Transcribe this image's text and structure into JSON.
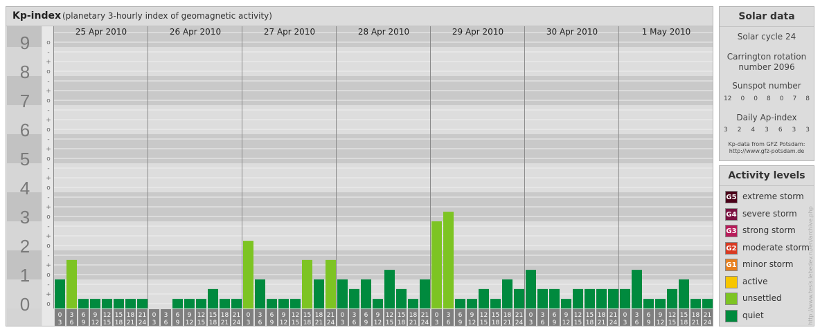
{
  "header": {
    "title": "Kp-index",
    "subtitle": "(planetary 3-hourly index of geomagnetic activity)"
  },
  "chart_data": {
    "type": "bar",
    "y_axis": {
      "labels": [
        "0",
        "1",
        "2",
        "3",
        "4",
        "5",
        "6",
        "7",
        "8",
        "9"
      ],
      "min": 0,
      "max": 9,
      "sublabels": [
        "-",
        "o",
        "+"
      ]
    },
    "days": [
      "25 Apr 2010",
      "26 Apr 2010",
      "27 Apr 2010",
      "28 Apr 2010",
      "29 Apr 2010",
      "30 Apr 2010",
      "1 May 2010"
    ],
    "interval_top": [
      "0",
      "3",
      "6",
      "9",
      "12",
      "15",
      "18",
      "21"
    ],
    "interval_bottom": [
      "3",
      "6",
      "9",
      "12",
      "15",
      "18",
      "21",
      "24"
    ],
    "values": [
      [
        1,
        1.67,
        0.33,
        0.33,
        0.33,
        0.33,
        0.33,
        0.33
      ],
      [
        0,
        0,
        0.33,
        0.33,
        0.33,
        0.67,
        0.33,
        0.33
      ],
      [
        2.33,
        1,
        0.33,
        0.33,
        0.33,
        1.67,
        1,
        1.67
      ],
      [
        1,
        0.67,
        1,
        0.33,
        1.33,
        0.67,
        0.33,
        1
      ],
      [
        3,
        3.33,
        0.33,
        0.33,
        0.67,
        0.33,
        1,
        0.67
      ],
      [
        1.33,
        0.67,
        0.67,
        0.33,
        0.67,
        0.67,
        0.67,
        0.67
      ],
      [
        0.67,
        1.33,
        0.33,
        0.33,
        0.67,
        1,
        0.33,
        0.33
      ]
    ],
    "colors": {
      "quiet": "#008a3e",
      "unsettled": "#7dc423",
      "active": "#f7c600"
    }
  },
  "solar": {
    "title": "Solar data",
    "cycle": "Solar cycle 24",
    "carrington_line1": "Carrington rotation",
    "carrington_line2": "number 2096",
    "sunspot_label": "Sunspot number",
    "sunspot_values": [
      "12",
      "0",
      "0",
      "8",
      "0",
      "7",
      "8"
    ],
    "ap_label": "Daily Ap-index",
    "ap_values": [
      "3",
      "2",
      "4",
      "3",
      "6",
      "3",
      "3"
    ],
    "credit_line1": "Kp-data from GFZ Potsdam:",
    "credit_line2": "http://www.gfz-potsdam.de"
  },
  "levels": {
    "title": "Activity levels",
    "items": [
      {
        "badge": "G5",
        "label": "extreme storm",
        "color": "#4a0018"
      },
      {
        "badge": "G4",
        "label": "severe storm",
        "color": "#7a1040"
      },
      {
        "badge": "G3",
        "label": "strong storm",
        "color": "#b81c5a"
      },
      {
        "badge": "G2",
        "label": "moderate storm",
        "color": "#d83a22"
      },
      {
        "badge": "G1",
        "label": "minor storm",
        "color": "#e8801e"
      },
      {
        "badge": "",
        "label": "active",
        "color": "#f7c600"
      },
      {
        "badge": "",
        "label": "unsettled",
        "color": "#7dc423"
      },
      {
        "badge": "",
        "label": "quiet",
        "color": "#008a3e"
      }
    ]
  },
  "watermark": "http://www.tesis.lebedev.ru/en/archive.php"
}
